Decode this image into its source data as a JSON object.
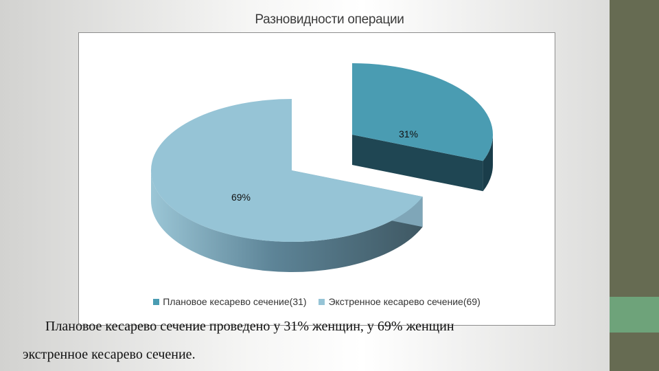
{
  "slide": {
    "title": "Разновидности операции",
    "body_line_1": "Плановое кесарево сечение проведено у 31% женщин, у 69% женщин",
    "body_line_2": "экстренное кесарево сечение."
  },
  "colors": {
    "accent_bar": "#666b52",
    "accent_block": "#6ea37a",
    "planned_top": "#4a9cb2",
    "planned_side": "#1f4653",
    "emergency_top": "#96c4d6",
    "emergency_side": "#4a6675"
  },
  "chart_data": {
    "type": "pie",
    "style": "3d-exploded",
    "slices": [
      {
        "label": "Плановое кесарево сечение(31)",
        "value": 31,
        "data_label": "31%"
      },
      {
        "label": "Экстренное кесарево сечение(69)",
        "value": 69,
        "data_label": "69%"
      }
    ],
    "legend": [
      "Плановое кесарево сечение(31)",
      "Экстренное кесарево сечение(69)"
    ],
    "legend_position": "bottom"
  }
}
